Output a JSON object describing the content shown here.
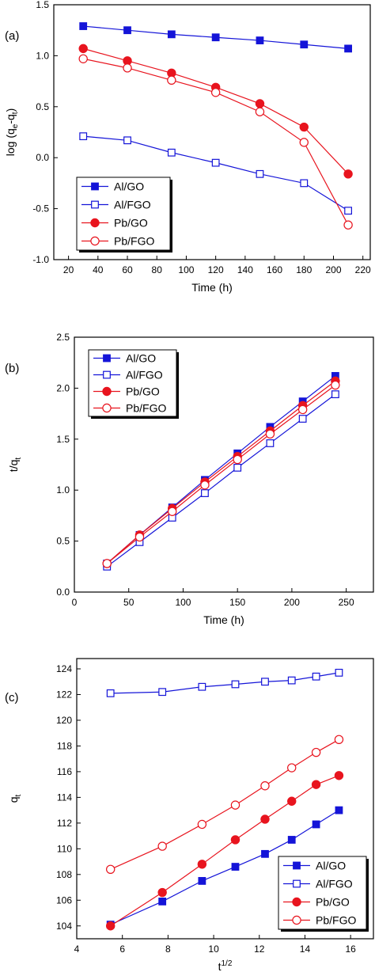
{
  "colors": {
    "blue": "#1414d8",
    "red": "#e8141e",
    "axis": "#000000"
  },
  "chart_data": [
    {
      "type": "line",
      "panel_label": "(a)",
      "xlabel": "Time (h)",
      "ylabel_parts": [
        "log (q",
        "e",
        "-q",
        "t",
        ")"
      ],
      "xlim": [
        10,
        225
      ],
      "ylim": [
        -1.0,
        1.5
      ],
      "xticks": [
        20,
        40,
        60,
        80,
        100,
        120,
        140,
        160,
        180,
        200,
        220
      ],
      "yticks": [
        -1.0,
        -0.5,
        0.0,
        0.5,
        1.0,
        1.5
      ],
      "ytick_labels": [
        "-1.0",
        "-0.5",
        "0.0",
        "0.5",
        "1.0",
        "1.5"
      ],
      "legend_position": "bottom-left",
      "x": [
        30,
        60,
        90,
        120,
        150,
        180,
        210
      ],
      "series": [
        {
          "name": "Al/GO",
          "color": "#1414d8",
          "marker": "square-filled",
          "values": [
            1.29,
            1.25,
            1.21,
            1.18,
            1.15,
            1.11,
            1.07
          ]
        },
        {
          "name": "Al/FGO",
          "color": "#1414d8",
          "marker": "square-open",
          "values": [
            0.21,
            0.17,
            0.05,
            -0.05,
            -0.16,
            -0.25,
            -0.52
          ]
        },
        {
          "name": "Pb/GO",
          "color": "#e8141e",
          "marker": "circle-filled",
          "values": [
            1.07,
            0.95,
            0.83,
            0.69,
            0.53,
            0.3,
            -0.16
          ]
        },
        {
          "name": "Pb/FGO",
          "color": "#e8141e",
          "marker": "circle-open",
          "values": [
            0.97,
            0.88,
            0.76,
            0.64,
            0.45,
            0.15,
            -0.66
          ]
        }
      ]
    },
    {
      "type": "line",
      "panel_label": "(b)",
      "xlabel": "Time (h)",
      "ylabel_parts": [
        "t/q",
        "t",
        "",
        "",
        ""
      ],
      "xlim": [
        0,
        275
      ],
      "ylim": [
        0.0,
        2.5
      ],
      "xticks": [
        0,
        50,
        100,
        150,
        200,
        250
      ],
      "yticks": [
        0.0,
        0.5,
        1.0,
        1.5,
        2.0,
        2.5
      ],
      "ytick_labels": [
        "0.0",
        "0.5",
        "1.0",
        "1.5",
        "2.0",
        "2.5"
      ],
      "legend_position": "top-left",
      "x": [
        30,
        60,
        90,
        120,
        150,
        180,
        210,
        240
      ],
      "series": [
        {
          "name": "Al/GO",
          "color": "#1414d8",
          "marker": "square-filled",
          "values": [
            0.28,
            0.56,
            0.83,
            1.1,
            1.36,
            1.62,
            1.87,
            2.12
          ]
        },
        {
          "name": "Al/FGO",
          "color": "#1414d8",
          "marker": "square-open",
          "values": [
            0.25,
            0.49,
            0.73,
            0.97,
            1.22,
            1.46,
            1.7,
            1.94
          ]
        },
        {
          "name": "Pb/GO",
          "color": "#e8141e",
          "marker": "circle-filled",
          "values": [
            0.28,
            0.56,
            0.82,
            1.08,
            1.33,
            1.58,
            1.83,
            2.07
          ]
        },
        {
          "name": "Pb/FGO",
          "color": "#e8141e",
          "marker": "circle-open",
          "values": [
            0.28,
            0.54,
            0.79,
            1.05,
            1.3,
            1.55,
            1.79,
            2.03
          ]
        }
      ]
    },
    {
      "type": "line",
      "panel_label": "(c)",
      "xlabel_parts": [
        "t",
        "1/2"
      ],
      "ylabel_parts": [
        "q",
        "t",
        "",
        "",
        ""
      ],
      "xlim": [
        4,
        17
      ],
      "ylim": [
        103,
        124.8
      ],
      "xticks": [
        4,
        6,
        8,
        10,
        12,
        14,
        16
      ],
      "yticks": [
        104,
        106,
        108,
        110,
        112,
        114,
        116,
        118,
        120,
        122,
        124
      ],
      "ytick_labels": [
        "104",
        "106",
        "108",
        "110",
        "112",
        "114",
        "116",
        "118",
        "120",
        "122",
        "124"
      ],
      "legend_position": "bottom-right",
      "x": [
        5.48,
        7.75,
        9.49,
        10.95,
        12.25,
        13.42,
        14.49,
        15.49
      ],
      "series": [
        {
          "name": "Al/GO",
          "color": "#1414d8",
          "marker": "square-filled",
          "values": [
            104.1,
            105.9,
            107.5,
            108.6,
            109.6,
            110.7,
            111.9,
            113.0
          ]
        },
        {
          "name": "Al/FGO",
          "color": "#1414d8",
          "marker": "square-open",
          "values": [
            122.1,
            122.2,
            122.6,
            122.8,
            123.0,
            123.1,
            123.4,
            123.7
          ]
        },
        {
          "name": "Pb/GO",
          "color": "#e8141e",
          "marker": "circle-filled",
          "values": [
            104.0,
            106.6,
            108.8,
            110.7,
            112.3,
            113.7,
            115.0,
            115.7
          ]
        },
        {
          "name": "Pb/FGO",
          "color": "#e8141e",
          "marker": "circle-open",
          "values": [
            108.4,
            110.2,
            111.9,
            113.4,
            114.9,
            116.3,
            117.5,
            118.5
          ]
        }
      ]
    }
  ]
}
